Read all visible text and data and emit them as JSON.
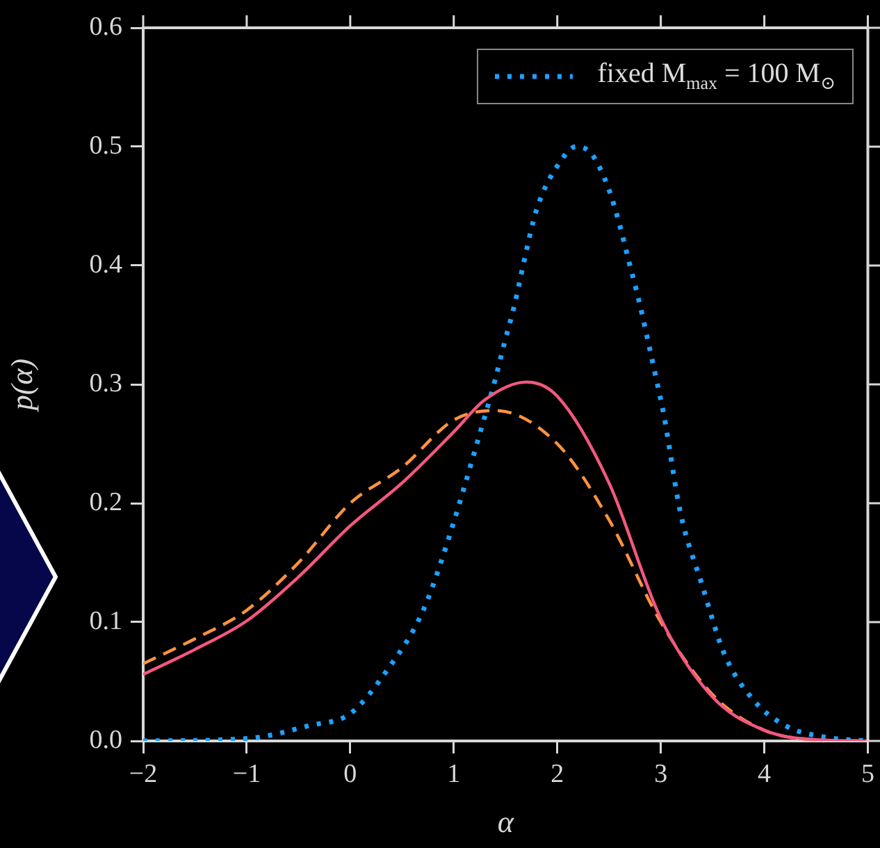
{
  "chart_data": {
    "type": "line",
    "xlabel": "α",
    "ylabel": "p(α)",
    "xlim": [
      -2,
      5
    ],
    "xticks": [
      {
        "value": -2,
        "label": "−2"
      },
      {
        "value": -1,
        "label": "−1"
      },
      0,
      1,
      2,
      3,
      4,
      5
    ],
    "ylim": [
      0,
      0.6
    ],
    "yticks": [
      {
        "value": 0,
        "label": "0.0"
      },
      0.1,
      0.2,
      0.3,
      0.4,
      0.5,
      0.6
    ],
    "legend": "top right",
    "series": [
      {
        "color": "#f4577f",
        "line_style": "solid",
        "x": [
          -2,
          -1.5,
          -1,
          -0.5,
          0,
          0.5,
          1,
          1.3,
          1.7,
          2,
          2.5,
          3,
          3.5,
          4,
          4.5,
          5
        ],
        "values": [
          0.056,
          0.077,
          0.101,
          0.138,
          0.181,
          0.217,
          0.26,
          0.287,
          0.302,
          0.29,
          0.217,
          0.103,
          0.037,
          0.009,
          0.001,
          0
        ]
      },
      {
        "color": "#ff9340",
        "line_style": "dashed",
        "x": [
          -2,
          -1.5,
          -1,
          -0.5,
          0,
          0.5,
          1,
          1.4,
          2,
          2.5,
          3,
          3.5,
          4,
          4.5,
          5
        ],
        "values": [
          0.065,
          0.086,
          0.11,
          0.15,
          0.2,
          0.23,
          0.27,
          0.278,
          0.25,
          0.186,
          0.1,
          0.039,
          0.009,
          0.001,
          0
        ]
      },
      {
        "name": "fixed M$_{max}$ = 100 M$_{⊙}$",
        "color": "#1ea0ff",
        "line_style": "dotted",
        "x": [
          -2,
          -1,
          -0.39,
          0,
          0.36,
          0.69,
          0.89,
          1.29,
          1.4,
          1.49,
          1.59,
          1.67,
          1.8,
          2.05,
          2.18,
          2.33,
          2.49,
          2.6,
          2.69,
          2.79,
          2.87,
          2.95,
          3.03,
          3.19,
          3.4,
          3.61,
          3.88,
          4.2,
          4.6,
          5
        ],
        "values": [
          0,
          0.002,
          0.013,
          0.023,
          0.06,
          0.107,
          0.154,
          0.27,
          0.304,
          0.335,
          0.368,
          0.4,
          0.447,
          0.49,
          0.5,
          0.494,
          0.466,
          0.435,
          0.404,
          0.37,
          0.339,
          0.307,
          0.274,
          0.192,
          0.131,
          0.074,
          0.036,
          0.013,
          0.003,
          0
        ]
      }
    ]
  }
}
